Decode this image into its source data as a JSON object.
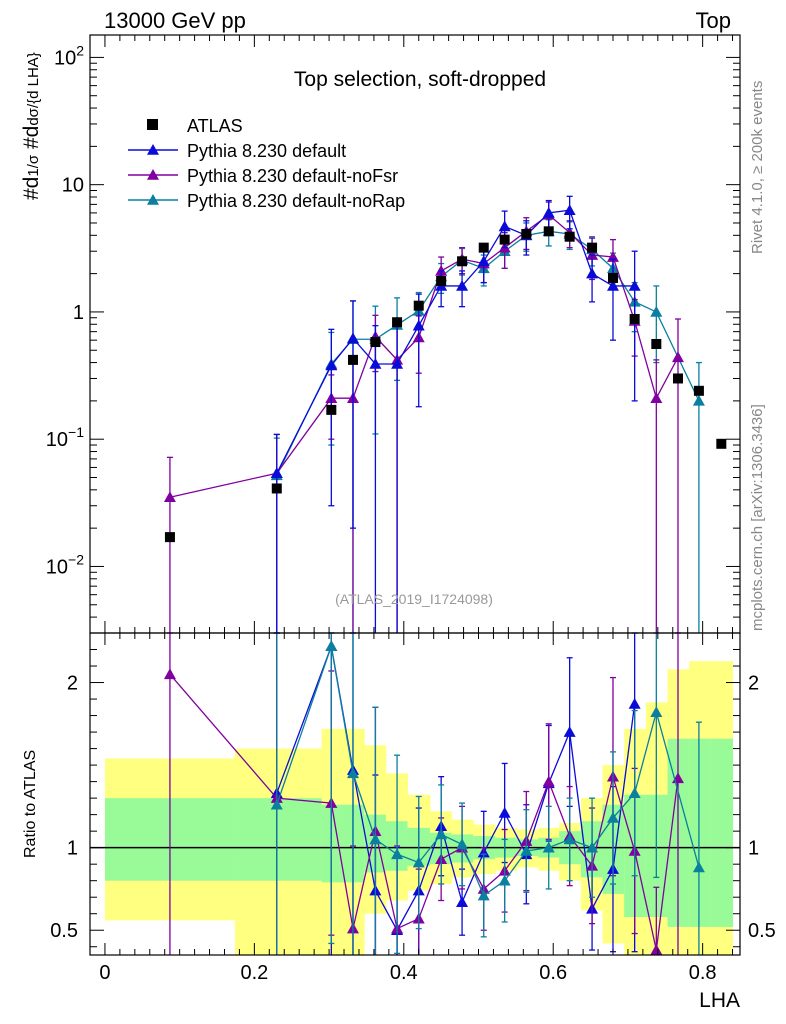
{
  "header": {
    "left": "13000 GeV pp",
    "right": "Top"
  },
  "side_texts": {
    "rivet": "Rivet 4.1.0, ≥ 200k events",
    "mcplots": "mcplots.cern.ch [arXiv:1306.3436]"
  },
  "watermark": "(ATLAS_2019_I1724098)",
  "colors": {
    "atlas": "#000000",
    "default": "#0b0bd9",
    "noFsr": "#8000a0",
    "noRap": "#0a7fa0",
    "band_yellow": "#ffff80",
    "band_green": "#98fb98"
  },
  "chart_data": [
    {
      "type": "line",
      "panel": "main",
      "title": "Top selection, soft-dropped",
      "ylabel": "#d1/σ #dd σ/{d LHA}",
      "xlabel": "LHA",
      "yscale": "log",
      "xlim": [
        -0.02,
        0.85
      ],
      "ylim": [
        0.003,
        150
      ],
      "yticks": [
        {
          "v": 0.01,
          "base": "10",
          "exp": "−2"
        },
        {
          "v": 0.1,
          "base": "10",
          "exp": "−1"
        },
        {
          "v": 1,
          "base": "1",
          "exp": ""
        },
        {
          "v": 10,
          "base": "10",
          "exp": ""
        },
        {
          "v": 100,
          "base": "10",
          "exp": "2"
        }
      ],
      "legend": {
        "position": "top-left",
        "entries": [
          {
            "label": "ATLAS",
            "series": "atlas"
          },
          {
            "label": "Pythia 8.230 default",
            "series": "default"
          },
          {
            "label": "Pythia 8.230 default-noFsr",
            "series": "noFsr"
          },
          {
            "label": "Pythia 8.230 default-noRap",
            "series": "noRap"
          }
        ]
      },
      "series": [
        {
          "key": "atlas",
          "name": "ATLAS",
          "marker": "square",
          "x": [
            0.087,
            0.23,
            0.303,
            0.332,
            0.362,
            0.391,
            0.42,
            0.45,
            0.478,
            0.507,
            0.535,
            0.564,
            0.594,
            0.622,
            0.652,
            0.68,
            0.709,
            0.738,
            0.767,
            0.795,
            0.825
          ],
          "y": [
            0.017,
            0.041,
            0.17,
            0.42,
            0.58,
            0.83,
            1.12,
            1.75,
            2.5,
            3.2,
            3.7,
            4.1,
            4.3,
            3.9,
            3.2,
            1.85,
            0.88,
            0.56,
            0.3,
            0.24,
            0.092
          ]
        },
        {
          "key": "default",
          "name": "Pythia 8.230 default",
          "marker": "triangle",
          "x": [
            0.23,
            0.303,
            0.332,
            0.362,
            0.391,
            0.42,
            0.45,
            0.478,
            0.507,
            0.535,
            0.564,
            0.594,
            0.622,
            0.652,
            0.68,
            0.709
          ],
          "y": [
            0.054,
            0.38,
            0.62,
            0.39,
            0.39,
            0.78,
            1.6,
            1.6,
            2.5,
            4.7,
            4.0,
            6.0,
            6.3,
            2.0,
            1.6,
            1.6
          ],
          "err": [
            0.055,
            0.35,
            0.6,
            0.39,
            0.39,
            0.6,
            0.5,
            0.5,
            0.8,
            1.5,
            1.2,
            1.5,
            1.8,
            0.8,
            1.0,
            1.4
          ]
        },
        {
          "key": "noFsr",
          "name": "Pythia 8.230 default-noFsr",
          "marker": "triangle",
          "x": [
            0.087,
            0.23,
            0.303,
            0.332,
            0.362,
            0.391,
            0.42,
            0.45,
            0.478,
            0.507,
            0.535,
            0.564,
            0.594,
            0.622,
            0.652,
            0.68,
            0.709,
            0.738,
            0.767
          ],
          "y": [
            0.035,
            0.054,
            0.21,
            0.21,
            0.64,
            0.42,
            0.63,
            2.1,
            2.6,
            2.4,
            3.2,
            4.3,
            5.8,
            4.2,
            2.8,
            2.7,
            0.85,
            0.21,
            0.44
          ],
          "err": [
            0.037,
            0.055,
            0.11,
            0.21,
            0.3,
            0.42,
            0.3,
            0.6,
            0.6,
            0.7,
            1.0,
            1.2,
            1.5,
            1.0,
            1.0,
            1.0,
            0.4,
            0.21,
            0.44
          ]
        },
        {
          "key": "noRap",
          "name": "Pythia 8.230 default-noRap",
          "marker": "triangle",
          "x": [
            0.23,
            0.303,
            0.332,
            0.362,
            0.391,
            0.42,
            0.45,
            0.478,
            0.507,
            0.535,
            0.564,
            0.594,
            0.622,
            0.652,
            0.68,
            0.709,
            0.738,
            0.795
          ],
          "y": [
            0.052,
            0.39,
            0.61,
            0.61,
            0.79,
            1.02,
            1.9,
            2.55,
            2.2,
            3.0,
            4.0,
            4.3,
            4.1,
            3.1,
            2.2,
            1.2,
            1.0,
            0.2
          ],
          "err": [
            0.05,
            0.3,
            0.61,
            0.5,
            0.5,
            0.4,
            0.5,
            0.6,
            0.6,
            0.8,
            1.0,
            1.0,
            1.0,
            0.8,
            0.7,
            0.5,
            0.6,
            0.2
          ]
        }
      ]
    },
    {
      "type": "line",
      "panel": "ratio",
      "ylabel": "Ratio to ATLAS",
      "xlabel": "LHA",
      "xlim": [
        -0.02,
        0.85
      ],
      "ylim": [
        0.35,
        2.3
      ],
      "yticks": [
        0.5,
        1,
        2
      ],
      "xticks": [
        0,
        0.2,
        0.4,
        0.6,
        0.8
      ],
      "bands": {
        "edges": [
          0.0,
          0.174,
          0.29,
          0.318,
          0.347,
          0.376,
          0.405,
          0.435,
          0.464,
          0.493,
          0.522,
          0.551,
          0.58,
          0.608,
          0.637,
          0.666,
          0.695,
          0.724,
          0.753,
          0.782,
          0.811,
          0.84
        ],
        "yellow_lo": [
          0.56,
          0.35,
          0.35,
          0.35,
          0.6,
          0.68,
          0.74,
          0.78,
          0.82,
          0.84,
          0.86,
          0.88,
          0.86,
          0.8,
          0.62,
          0.42,
          0.35,
          0.35,
          0.35,
          0.35,
          0.35
        ],
        "yellow_hi": [
          1.54,
          1.6,
          1.72,
          1.72,
          1.62,
          1.45,
          1.32,
          1.22,
          1.17,
          1.14,
          1.12,
          1.11,
          1.12,
          1.15,
          1.3,
          1.5,
          1.72,
          1.88,
          2.08,
          2.13,
          2.13
        ],
        "green_lo": [
          0.8,
          0.8,
          0.79,
          0.79,
          0.85,
          0.86,
          0.89,
          0.9,
          0.91,
          0.93,
          0.94,
          0.95,
          0.94,
          0.9,
          0.82,
          0.72,
          0.58,
          0.58,
          0.52,
          0.52,
          0.52
        ],
        "green_hi": [
          1.3,
          1.3,
          1.26,
          1.26,
          1.2,
          1.16,
          1.12,
          1.09,
          1.08,
          1.07,
          1.06,
          1.05,
          1.06,
          1.1,
          1.16,
          1.26,
          1.32,
          1.32,
          1.66,
          1.66,
          1.66
        ]
      },
      "series": [
        {
          "key": "default",
          "name": "Pythia 8.230 default",
          "x": [
            0.23,
            0.303,
            0.332,
            0.362,
            0.391,
            0.42,
            0.45,
            0.478,
            0.507,
            0.535,
            0.564,
            0.594,
            0.622,
            0.652,
            0.68,
            0.709
          ],
          "y": [
            1.33,
            2.22,
            1.47,
            0.74,
            0.5,
            0.74,
            1.13,
            0.67,
            0.97,
            1.21,
            0.96,
            1.39,
            1.7,
            0.63,
            0.87,
            1.87
          ],
          "err": [
            1.3,
            2.0,
            1.4,
            0.7,
            0.5,
            0.5,
            0.3,
            0.2,
            0.25,
            0.3,
            0.3,
            0.35,
            0.45,
            0.25,
            0.5,
            1.5
          ]
        },
        {
          "key": "noFsr",
          "name": "Pythia 8.230 default-noFsr",
          "x": [
            0.087,
            0.23,
            0.303,
            0.332,
            0.362,
            0.391,
            0.42,
            0.45,
            0.478,
            0.507,
            0.535,
            0.564,
            0.594,
            0.622,
            0.652,
            0.68,
            0.709,
            0.738,
            0.767
          ],
          "y": [
            2.05,
            1.3,
            1.27,
            0.51,
            1.1,
            0.51,
            0.57,
            0.93,
            1.0,
            0.75,
            0.86,
            1.04,
            1.4,
            1.07,
            0.89,
            1.43,
            0.98,
            0.38,
            1.42
          ],
          "err": [
            2.1,
            1.3,
            0.8,
            0.5,
            0.75,
            0.5,
            0.3,
            0.25,
            0.25,
            0.25,
            0.25,
            0.3,
            0.35,
            0.3,
            0.35,
            0.6,
            0.5,
            0.38,
            1.4
          ]
        },
        {
          "key": "noRap",
          "name": "Pythia 8.230 default-noRap",
          "x": [
            0.23,
            0.303,
            0.332,
            0.362,
            0.391,
            0.42,
            0.45,
            0.478,
            0.507,
            0.535,
            0.564,
            0.594,
            0.622,
            0.652,
            0.68,
            0.709,
            0.738,
            0.795
          ],
          "y": [
            1.26,
            2.22,
            1.45,
            1.05,
            0.96,
            0.91,
            1.08,
            1.02,
            0.71,
            0.8,
            0.98,
            1.0,
            1.05,
            1.0,
            1.18,
            1.33,
            1.82,
            0.88
          ],
          "err": [
            1.2,
            1.8,
            1.4,
            0.8,
            0.6,
            0.4,
            0.3,
            0.25,
            0.25,
            0.25,
            0.25,
            0.25,
            0.25,
            0.3,
            0.4,
            0.5,
            1.0,
            0.88
          ]
        }
      ]
    }
  ]
}
